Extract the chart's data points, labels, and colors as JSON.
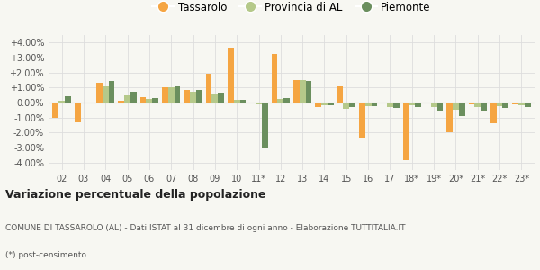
{
  "categories": [
    "02",
    "03",
    "04",
    "05",
    "06",
    "07",
    "08",
    "09",
    "10",
    "11*",
    "12",
    "13",
    "14",
    "15",
    "16",
    "17",
    "18*",
    "19*",
    "20*",
    "21*",
    "22*",
    "23*"
  ],
  "tassarolo": [
    -1.0,
    -1.3,
    1.35,
    0.15,
    0.35,
    1.0,
    0.85,
    1.95,
    3.65,
    -0.05,
    3.25,
    1.5,
    -0.3,
    1.1,
    -2.35,
    -0.05,
    -3.85,
    -0.05,
    -2.0,
    -0.1,
    -1.4,
    -0.1
  ],
  "provincia": [
    0.1,
    0.0,
    1.1,
    0.5,
    0.25,
    1.0,
    0.75,
    0.6,
    0.2,
    -0.1,
    0.25,
    1.5,
    -0.15,
    -0.4,
    -0.25,
    -0.3,
    -0.2,
    -0.3,
    -0.5,
    -0.3,
    -0.25,
    -0.2
  ],
  "piemonte": [
    0.45,
    0.0,
    1.45,
    0.7,
    0.3,
    1.1,
    0.85,
    0.65,
    0.2,
    -3.0,
    0.3,
    1.45,
    -0.15,
    -0.3,
    -0.25,
    -0.35,
    -0.3,
    -0.55,
    -0.9,
    -0.55,
    -0.35,
    -0.3
  ],
  "color_tassarolo": "#f5a542",
  "color_provincia": "#b5c98a",
  "color_piemonte": "#6b8f5e",
  "legend_labels": [
    "Tassarolo",
    "Provincia di AL",
    "Piemonte"
  ],
  "title_bold": "Variazione percentuale della popolazione",
  "footer1": "COMUNE DI TASSAROLO (AL) - Dati ISTAT al 31 dicembre di ogni anno - Elaborazione TUTTITALIA.IT",
  "footer2": "(*) post-censimento",
  "ylim": [
    -4.5,
    4.5
  ],
  "yticks": [
    -4.0,
    -3.0,
    -2.0,
    -1.0,
    0.0,
    1.0,
    2.0,
    3.0,
    4.0
  ],
  "ytick_labels": [
    "-4.00%",
    "-3.00%",
    "-2.00%",
    "-1.00%",
    "0.00%",
    "+1.00%",
    "+2.00%",
    "+3.00%",
    "+4.00%"
  ],
  "bg_color": "#f7f7f2",
  "grid_color": "#dddddd",
  "bar_width": 0.28,
  "legend_marker_size": 9,
  "tick_fontsize": 7,
  "title_fontsize": 9,
  "footer_fontsize": 6.5
}
